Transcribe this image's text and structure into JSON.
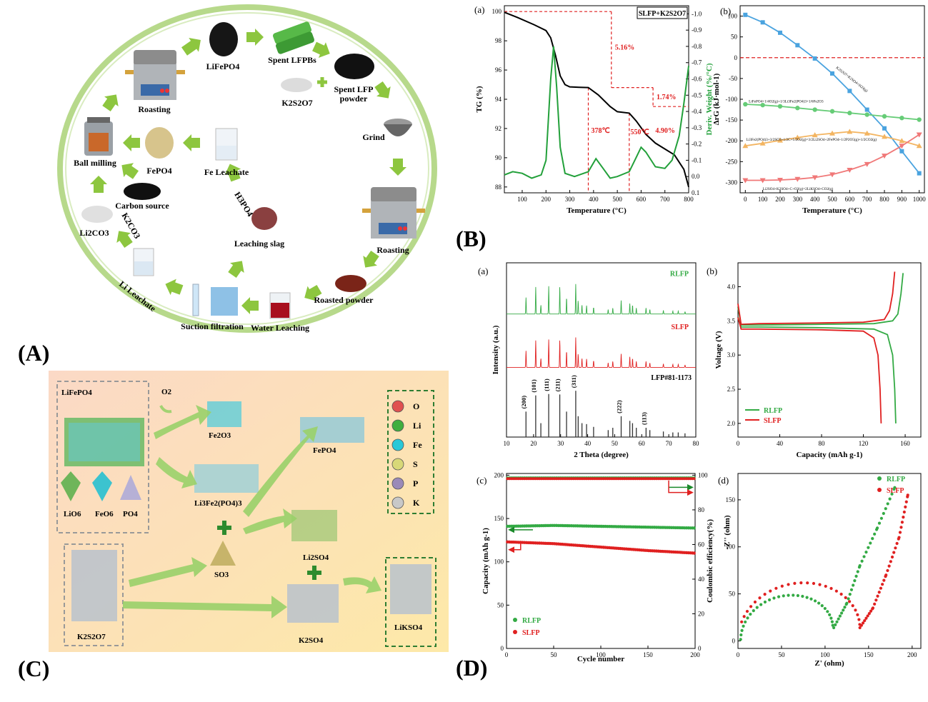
{
  "panel_labels": {
    "A": "(A)",
    "B": "(B)",
    "C": "(C)",
    "D": "(D)"
  },
  "cycle": {
    "nodes": {
      "lifepo4": "LiFePO4",
      "spent_lfpbs": "Spent LFPBs",
      "spent_powder_1": "Spent LFP",
      "spent_powder_2": "powder",
      "k2s2o7": "K2S2O7",
      "grind": "Grind",
      "roasting_right": "Roasting",
      "roasted_powder": "Roasted powder",
      "water_leaching": "Water Leaching",
      "suction_filtration": "Suction filtration",
      "li_leachate": "Li Leachate",
      "li2co3": "Li2CO3",
      "k2co3": "K2CO3",
      "carbon_source": "Carbon source",
      "ball_milling": "Ball milling",
      "roasting_left": "Roasting",
      "fepo4": "FePO4",
      "fe_leachate": "Fe Leachate",
      "h3po4": "H3PO4",
      "leaching_slag": "Leaching slag"
    },
    "colors": {
      "arrow": "#8dc63f",
      "ring": "#b7d98b"
    }
  },
  "mechanism": {
    "labels": {
      "lifepo4": "LiFePO4",
      "o2": "O2",
      "fe2o3": "Fe2O3",
      "fepo4": "FePO4",
      "li3fe2po43": "Li3Fe2(PO4)3",
      "li2so4": "Li2SO4",
      "so3": "SO3",
      "k2so4": "K2SO4",
      "likso4": "LiKSO4",
      "k2s2o7": "K2S2O7",
      "lio6": "LiO6",
      "feo6": "FeO6",
      "po4": "PO4"
    },
    "legend": [
      {
        "el": "O",
        "color": "#e05050"
      },
      {
        "el": "Li",
        "color": "#3fae3f"
      },
      {
        "el": "Fe",
        "color": "#28c8d8"
      },
      {
        "el": "S",
        "color": "#d8d878"
      },
      {
        "el": "P",
        "color": "#9a8ab8"
      },
      {
        "el": "K",
        "color": "#c8c8c8"
      }
    ],
    "plus": "+"
  },
  "chart_data": [
    {
      "id": "B-a",
      "type": "line",
      "panel_letter": "(a)",
      "title": "SLFP+K2S2O7",
      "xlabel": "Temperature (°C)",
      "ylabel": "TG (%)",
      "y2label": "Deriv. Weight (%/°C)",
      "xlim": [
        25,
        800
      ],
      "ylim": [
        87.6,
        100.4
      ],
      "y2lim": [
        0.1,
        -1.05
      ],
      "xticks": [
        100,
        200,
        300,
        400,
        500,
        600,
        700,
        800
      ],
      "yticks": [
        88,
        90,
        92,
        94,
        96,
        98,
        100
      ],
      "y2ticks": [
        0.1,
        0.0,
        -0.1,
        -0.2,
        -0.3,
        -0.4,
        -0.5,
        -0.6,
        -0.7,
        -0.8,
        -0.9,
        -1.0
      ],
      "series": [
        {
          "color": "#000000",
          "axis": "y",
          "x": [
            25,
            80,
            150,
            200,
            220,
            240,
            260,
            280,
            300,
            340,
            378,
            420,
            470,
            500,
            550,
            580,
            620,
            660,
            700,
            740,
            780,
            800
          ],
          "values": [
            99.95,
            99.6,
            99.1,
            98.7,
            98.2,
            97.0,
            95.6,
            95.0,
            94.85,
            94.82,
            94.8,
            94.3,
            93.5,
            93.15,
            93.05,
            92.5,
            91.6,
            91.0,
            90.6,
            90.2,
            89.2,
            88.0
          ]
        },
        {
          "color": "#22a03a",
          "axis": "y2",
          "x": [
            25,
            60,
            100,
            140,
            180,
            200,
            220,
            232,
            245,
            260,
            280,
            320,
            378,
            410,
            440,
            470,
            500,
            550,
            580,
            600,
            620,
            660,
            700,
            730,
            760,
            780,
            800
          ],
          "values": [
            -0.01,
            -0.03,
            -0.02,
            0.01,
            -0.01,
            -0.1,
            -0.6,
            -0.8,
            -0.55,
            -0.18,
            -0.02,
            0.0,
            -0.03,
            -0.11,
            -0.05,
            0.01,
            0.0,
            -0.03,
            -0.12,
            -0.18,
            -0.15,
            -0.06,
            -0.05,
            -0.1,
            -0.25,
            -0.45,
            -0.68
          ]
        }
      ],
      "annotations": [
        "5.16%",
        "1.74%",
        "4.90%",
        "378℃",
        "550℃"
      ]
    },
    {
      "id": "B-b",
      "type": "line",
      "panel_letter": "(b)",
      "xlabel": "Temperature (°C)",
      "ylabel": "ΔrG (kJ·mol-1)",
      "xlim": [
        -30,
        1030
      ],
      "ylim": [
        -325,
        125
      ],
      "xticks": [
        0,
        100,
        200,
        300,
        400,
        500,
        600,
        700,
        800,
        900,
        1000
      ],
      "yticks": [
        100,
        50,
        0,
        -50,
        -100,
        -150,
        -200,
        -250,
        -300
      ],
      "x": [
        0,
        100,
        200,
        300,
        400,
        500,
        600,
        700,
        800,
        900,
        1000
      ],
      "series": [
        {
          "name": "K2S2O7=K2SO4+SO3(g)",
          "color": "#4aa3df",
          "marker": "square",
          "values": [
            103,
            85,
            60,
            30,
            -2,
            -38,
            -80,
            -125,
            -170,
            -225,
            -278
          ]
        },
        {
          "name": "LiFePO4+1/4O2(g)=1/3Li3Fe2(PO4)3+1/6Fe2O3",
          "color": "#66cc77",
          "marker": "circle",
          "values": [
            -112,
            -114,
            -117,
            -121,
            -125,
            -129,
            -133,
            -137,
            -141,
            -145,
            -149
          ]
        },
        {
          "name": "Li3Fe2(PO4)3+3/2SO3+1/2C+1/2O2(g)=3/2Li2SO4+2FePO4+1/2P2O5(g)+1/2CO2(g)",
          "color": "#f3b562",
          "marker": "triangle-up",
          "values": [
            -212,
            -206,
            -199,
            -192,
            -186,
            -182,
            -178,
            -182,
            -190,
            -200,
            -212
          ]
        },
        {
          "name": "Li2SO4+K2SO4+C+O2(g)=2LiKSO4+CO2(g)",
          "color": "#f07878",
          "marker": "triangle-down",
          "values": [
            -295,
            -295,
            -294,
            -292,
            -288,
            -281,
            -270,
            -256,
            -236,
            -212,
            -185
          ]
        }
      ]
    },
    {
      "id": "D-a",
      "type": "line",
      "panel_letter": "(a)",
      "xlabel": "2 Theta (degree)",
      "ylabel": "Intensity (a.u.)",
      "xlim": [
        10,
        80
      ],
      "xticks": [
        10,
        20,
        30,
        40,
        50,
        60,
        70,
        80
      ],
      "reference": {
        "name": "LFP#81-1173",
        "peaks": [
          [
            17.2,
            0.55
          ],
          [
            20.8,
            0.9
          ],
          [
            22.7,
            0.3
          ],
          [
            25.6,
            0.93
          ],
          [
            29.7,
            0.92
          ],
          [
            32.2,
            0.55
          ],
          [
            35.6,
            1.0
          ],
          [
            36.5,
            0.45
          ],
          [
            37.9,
            0.3
          ],
          [
            39.6,
            0.28
          ],
          [
            42.2,
            0.22
          ],
          [
            47.6,
            0.15
          ],
          [
            49.3,
            0.2
          ],
          [
            52.4,
            0.45
          ],
          [
            55.6,
            0.35
          ],
          [
            56.6,
            0.3
          ],
          [
            58.0,
            0.2
          ],
          [
            61.6,
            0.2
          ],
          [
            63.0,
            0.15
          ],
          [
            68.0,
            0.12
          ],
          [
            71.5,
            0.1
          ],
          [
            73.5,
            0.1
          ],
          [
            76.0,
            0.08
          ]
        ],
        "hkl": [
          [
            17.2,
            "(200)"
          ],
          [
            20.8,
            "(101)"
          ],
          [
            25.6,
            "(111)"
          ],
          [
            29.7,
            "(211)"
          ],
          [
            35.6,
            "(311)"
          ],
          [
            52.4,
            "(222)"
          ],
          [
            61.6,
            "(113)"
          ]
        ]
      },
      "series": [
        {
          "name": "RLFP",
          "color": "#33aa44",
          "offset": 2
        },
        {
          "name": "SLFP",
          "color": "#e02020",
          "offset": 1
        }
      ]
    },
    {
      "id": "D-b",
      "type": "line",
      "panel_letter": "(b)",
      "xlabel": "Capacity (mAh g-1)",
      "ylabel": "Voltage (V)",
      "xlim": [
        0,
        175
      ],
      "ylim": [
        1.8,
        4.35
      ],
      "xticks": [
        0,
        40,
        80,
        120,
        160
      ],
      "yticks": [
        2.0,
        2.5,
        3.0,
        3.5,
        4.0
      ],
      "series": [
        {
          "name": "RLFP",
          "color": "#33aa44",
          "charge": {
            "x": [
              0,
              3,
              20,
              80,
              130,
              148,
              153,
              156,
              158
            ],
            "values": [
              3.7,
              3.44,
              3.44,
              3.45,
              3.46,
              3.5,
              3.6,
              3.9,
              4.2
            ]
          },
          "discharge": {
            "x": [
              0,
              3,
              20,
              80,
              130,
              143,
              148,
              150,
              151
            ],
            "values": [
              3.55,
              3.41,
              3.41,
              3.4,
              3.38,
              3.3,
              3.0,
              2.5,
              2.0
            ]
          }
        },
        {
          "name": "SLFP",
          "color": "#e02020",
          "charge": {
            "x": [
              0,
              3,
              20,
              80,
              120,
              140,
              145,
              148,
              150
            ],
            "values": [
              3.75,
              3.45,
              3.46,
              3.47,
              3.48,
              3.52,
              3.65,
              3.9,
              4.22
            ]
          },
          "discharge": {
            "x": [
              0,
              3,
              20,
              80,
              120,
              130,
              134,
              136,
              137
            ],
            "values": [
              3.55,
              3.38,
              3.38,
              3.37,
              3.35,
              3.25,
              3.0,
              2.5,
              2.0
            ]
          }
        }
      ]
    },
    {
      "id": "D-c",
      "type": "scatter",
      "panel_letter": "(c)",
      "xlabel": "Cycle number",
      "ylabel": "Capacity (mAh g-1)",
      "y2label": "Coulombic efficiency(%)",
      "xlim": [
        0,
        200
      ],
      "ylim": [
        0,
        202
      ],
      "y2lim": [
        0,
        101
      ],
      "xticks": [
        0,
        50,
        100,
        150,
        200
      ],
      "yticks": [
        0,
        50,
        100,
        150,
        200
      ],
      "y2ticks": [
        0,
        20,
        40,
        60,
        80,
        100
      ],
      "series": [
        {
          "name": "RLFP",
          "color": "#33aa44",
          "capacity": [
            [
              1,
              141
            ],
            [
              50,
              142
            ],
            [
              100,
              141
            ],
            [
              150,
              140
            ],
            [
              200,
              139
            ]
          ],
          "efficiency": 98.5
        },
        {
          "name": "SLFP",
          "color": "#e02020",
          "capacity": [
            [
              1,
              123
            ],
            [
              50,
              121
            ],
            [
              100,
              117
            ],
            [
              150,
              113
            ],
            [
              200,
              110
            ]
          ],
          "efficiency": 98.0
        }
      ]
    },
    {
      "id": "D-d",
      "type": "scatter",
      "panel_letter": "(d)",
      "xlabel": "Z' (ohm)",
      "ylabel": "-Z'' (ohm)",
      "xlim": [
        0,
        210
      ],
      "ylim": [
        -8,
        178
      ],
      "xticks": [
        0,
        50,
        100,
        150,
        200
      ],
      "yticks": [
        0,
        50,
        100,
        150
      ],
      "series": [
        {
          "name": "RLFP",
          "color": "#33aa44",
          "center": 56,
          "radius": 53,
          "tail": [
            [
              110,
              14
            ],
            [
              125,
              40
            ],
            [
              140,
              80
            ],
            [
              160,
              120
            ],
            [
              180,
              163
            ]
          ]
        },
        {
          "name": "SLFP",
          "color": "#e02020",
          "center": 70,
          "radius": 70,
          "tail": [
            [
              140,
              14
            ],
            [
              155,
              35
            ],
            [
              170,
              70
            ],
            [
              185,
              110
            ],
            [
              195,
              155
            ]
          ]
        }
      ]
    }
  ]
}
